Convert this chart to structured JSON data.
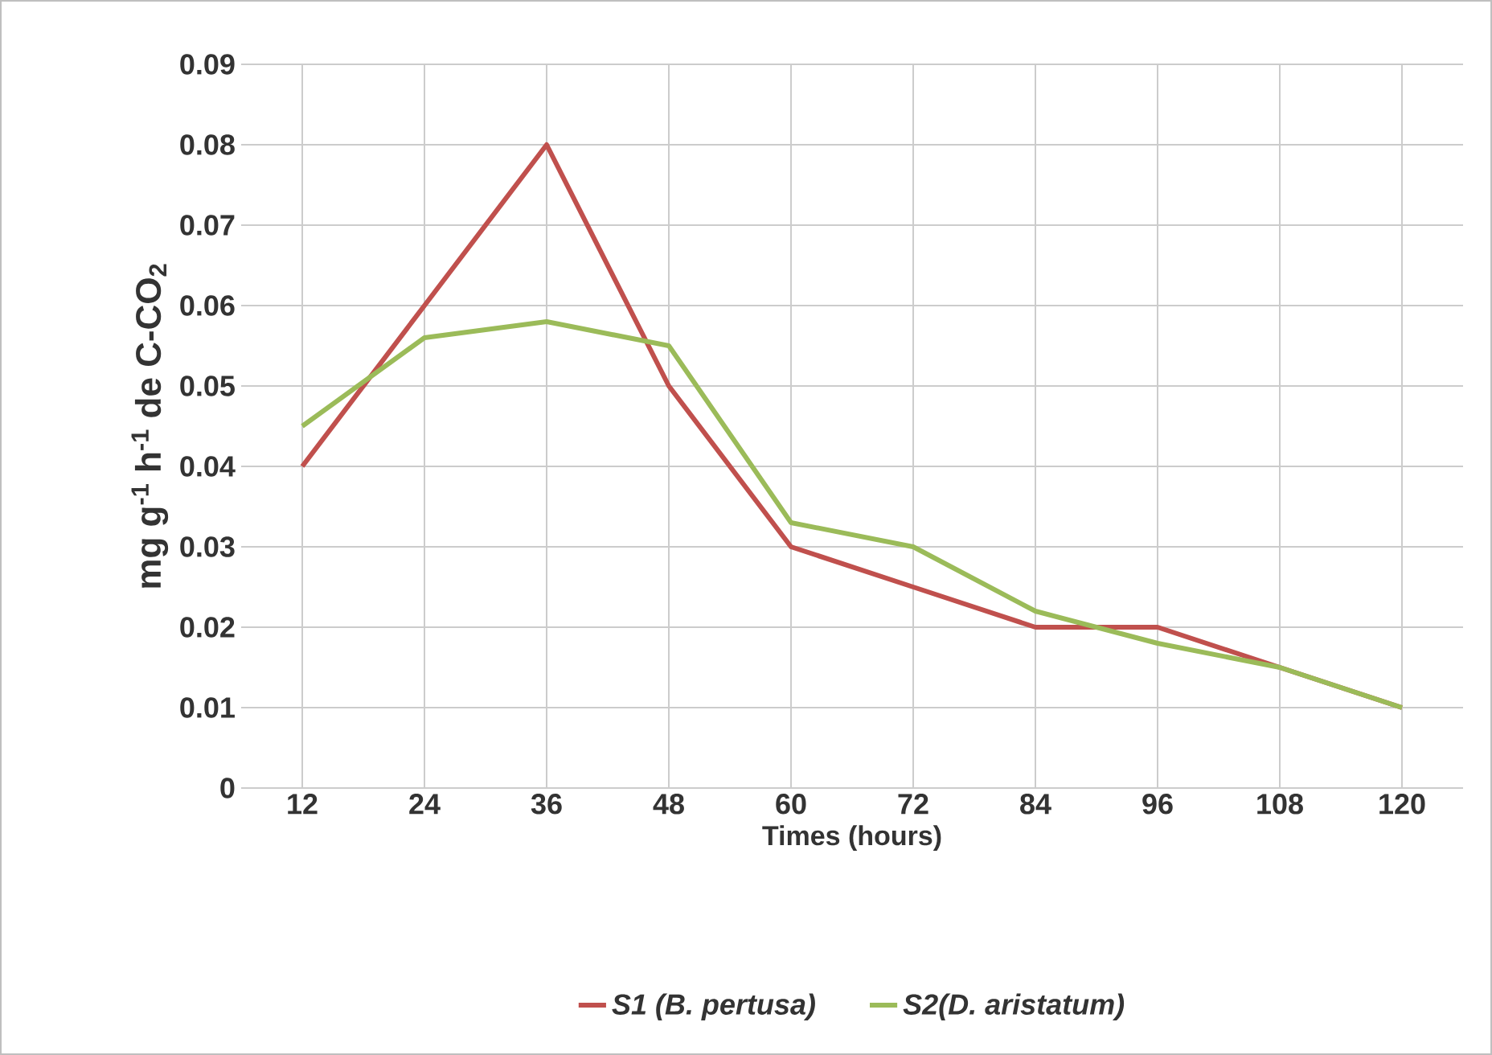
{
  "chart_data": {
    "type": "line",
    "xlabel": "Times (hours)",
    "ylabel": "mg g$^{-1}$ h$^{-1}$ de C-CO$_{2}$",
    "categories": [
      "12",
      "24",
      "36",
      "48",
      "60",
      "72",
      "84",
      "96",
      "108",
      "120"
    ],
    "series": [
      {
        "name": "S1 (B. pertusa)",
        "color": "#c0504d",
        "values": [
          0.04,
          0.06,
          0.08,
          0.05,
          0.03,
          0.025,
          0.02,
          0.02,
          0.015,
          0.01
        ]
      },
      {
        "name": "S2(D. aristatum)",
        "color": "#9bbb59",
        "values": [
          0.045,
          0.056,
          0.058,
          0.055,
          0.033,
          0.03,
          0.022,
          0.018,
          0.015,
          0.01
        ]
      }
    ],
    "ylim": [
      0,
      0.09
    ],
    "yticks": [
      0,
      0.01,
      0.02,
      0.03,
      0.04,
      0.05,
      0.06,
      0.07,
      0.08,
      0.09
    ],
    "grid": true,
    "legend": "bottom",
    "marker": "none",
    "line_style": "solid"
  }
}
